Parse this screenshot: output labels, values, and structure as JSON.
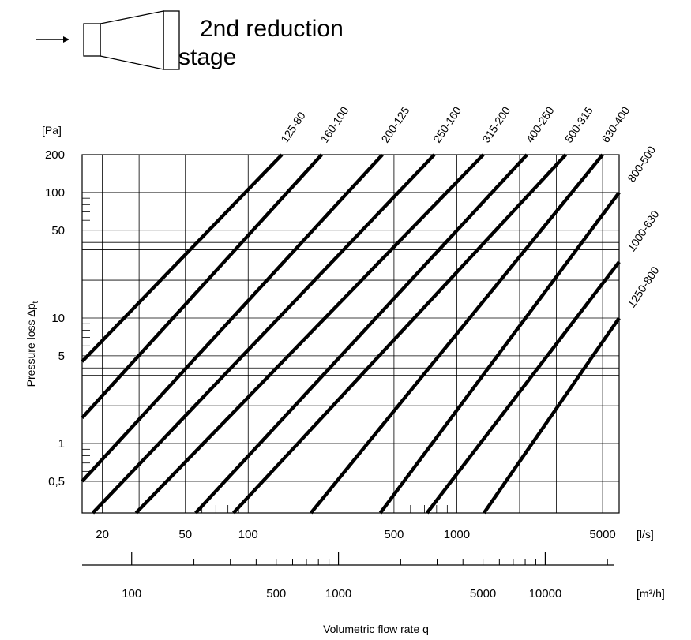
{
  "title": {
    "line1": "2nd reduction",
    "line2": "stage"
  },
  "icons": {
    "flow_arrow": "right-arrow-icon",
    "reducer": "duct-reducer-icon"
  },
  "chart_data": {
    "type": "line",
    "title": "2nd reduction stage",
    "xlabel": "Volumetric flow rate q",
    "ylabel": "Pressure loss Δp",
    "ylabel_subscript": "t",
    "x_scale": "log",
    "y_scale": "log",
    "xlim": [
      16,
      6000
    ],
    "ylim": [
      0.28,
      200
    ],
    "x_unit": "[l/s]",
    "y_unit": "[Pa]",
    "x_ticks": [
      {
        "v": 20,
        "label": "20"
      },
      {
        "v": 50,
        "label": "50"
      },
      {
        "v": 100,
        "label": "100"
      },
      {
        "v": 500,
        "label": "500"
      },
      {
        "v": 1000,
        "label": "1000"
      },
      {
        "v": 5000,
        "label": "5000"
      }
    ],
    "y_ticks": [
      {
        "v": 200,
        "label": "200"
      },
      {
        "v": 100,
        "label": "100"
      },
      {
        "v": 50,
        "label": "50"
      },
      {
        "v": 10,
        "label": "10"
      },
      {
        "v": 5,
        "label": "5"
      },
      {
        "v": 1,
        "label": "1"
      },
      {
        "v": 0.5,
        "label": "0,5"
      }
    ],
    "x2_unit": "[m³/h]",
    "x2_ticks": [
      {
        "v": 100,
        "label": "100"
      },
      {
        "v": 500,
        "label": "500"
      },
      {
        "v": 1000,
        "label": "1000"
      },
      {
        "v": 5000,
        "label": "5000"
      },
      {
        "v": 10000,
        "label": "10000"
      }
    ],
    "grid": true,
    "series": [
      {
        "name": "125-80",
        "x": [
          16,
          145
        ],
        "y": [
          4.5,
          200
        ]
      },
      {
        "name": "160-100",
        "x": [
          16,
          225
        ],
        "y": [
          1.6,
          200
        ]
      },
      {
        "name": "200-125",
        "x": [
          16,
          440
        ],
        "y": [
          0.5,
          200
        ]
      },
      {
        "name": "250-160",
        "x": [
          18,
          780
        ],
        "y": [
          0.28,
          200
        ]
      },
      {
        "name": "315-200",
        "x": [
          29,
          1340
        ],
        "y": [
          0.28,
          200
        ]
      },
      {
        "name": "400-250",
        "x": [
          56,
          2170
        ],
        "y": [
          0.28,
          200
        ]
      },
      {
        "name": "500-315",
        "x": [
          85,
          3330
        ],
        "y": [
          0.28,
          200
        ]
      },
      {
        "name": "630-400",
        "x": [
          200,
          5000
        ],
        "y": [
          0.28,
          200
        ]
      },
      {
        "name": "800-500",
        "x": [
          430,
          6000
        ],
        "y": [
          0.28,
          100
        ]
      },
      {
        "name": "1000-630",
        "x": [
          720,
          6000
        ],
        "y": [
          0.28,
          28
        ]
      },
      {
        "name": "1250-800",
        "x": [
          1350,
          6000
        ],
        "y": [
          0.28,
          10
        ]
      }
    ]
  }
}
